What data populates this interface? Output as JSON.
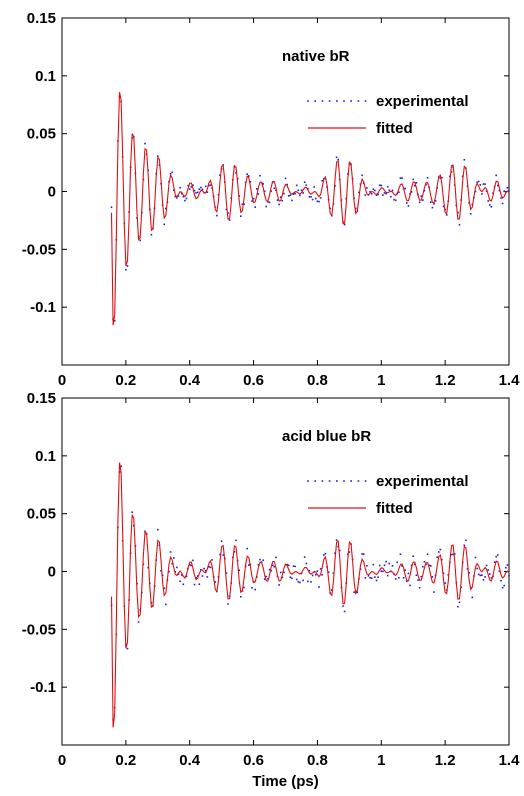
{
  "chart_data": [
    {
      "type": "line",
      "title": "",
      "annotation": "native bR",
      "xlabel": "",
      "ylabel": "",
      "xlim": [
        0,
        1.4
      ],
      "ylim": [
        -0.15,
        0.15
      ],
      "xticks": [
        "0",
        "0.2",
        "0.4",
        "0.6",
        "0.8",
        "1",
        "1.2",
        "1.4"
      ],
      "yticks": [
        "0.15",
        "0.1",
        "0.05",
        "0",
        "-0.05",
        "-0.1"
      ],
      "legend_position": "top-right",
      "grid": false,
      "series": [
        {
          "name": "experimental",
          "style": "dotted",
          "color": "#1f1fd6",
          "x_range": [
            0.155,
            1.4
          ],
          "dt": 0.005,
          "amp0": 0.12,
          "decay": 0.06,
          "freq": 25,
          "jitter": 0.006
        },
        {
          "name": "fitted",
          "style": "solid",
          "color": "#e01010",
          "x_range": [
            0.155,
            1.4
          ],
          "dt": 0.005,
          "amp0": 0.12,
          "decay": 0.06,
          "freq": 25,
          "jitter": 0
        }
      ]
    },
    {
      "type": "line",
      "title": "",
      "annotation": "acid blue bR",
      "xlabel": "Time (ps)",
      "ylabel": "",
      "xlim": [
        0,
        1.4
      ],
      "ylim": [
        -0.15,
        0.15
      ],
      "xticks": [
        "0",
        "0.2",
        "0.4",
        "0.6",
        "0.8",
        "1",
        "1.2",
        "1.4"
      ],
      "yticks": [
        "0.15",
        "0.1",
        "0.05",
        "0",
        "-0.05",
        "-0.1"
      ],
      "legend_position": "top-right",
      "grid": false,
      "series": [
        {
          "name": "experimental",
          "style": "dotted",
          "color": "#1f1fd6",
          "x_range": [
            0.155,
            1.4
          ],
          "dt": 0.005,
          "amp0": 0.145,
          "decay": 0.05,
          "freq": 25,
          "jitter": 0.01
        },
        {
          "name": "fitted",
          "style": "solid",
          "color": "#e01010",
          "x_range": [
            0.155,
            1.4
          ],
          "dt": 0.005,
          "amp0": 0.145,
          "decay": 0.05,
          "freq": 25,
          "jitter": 0
        }
      ]
    }
  ]
}
